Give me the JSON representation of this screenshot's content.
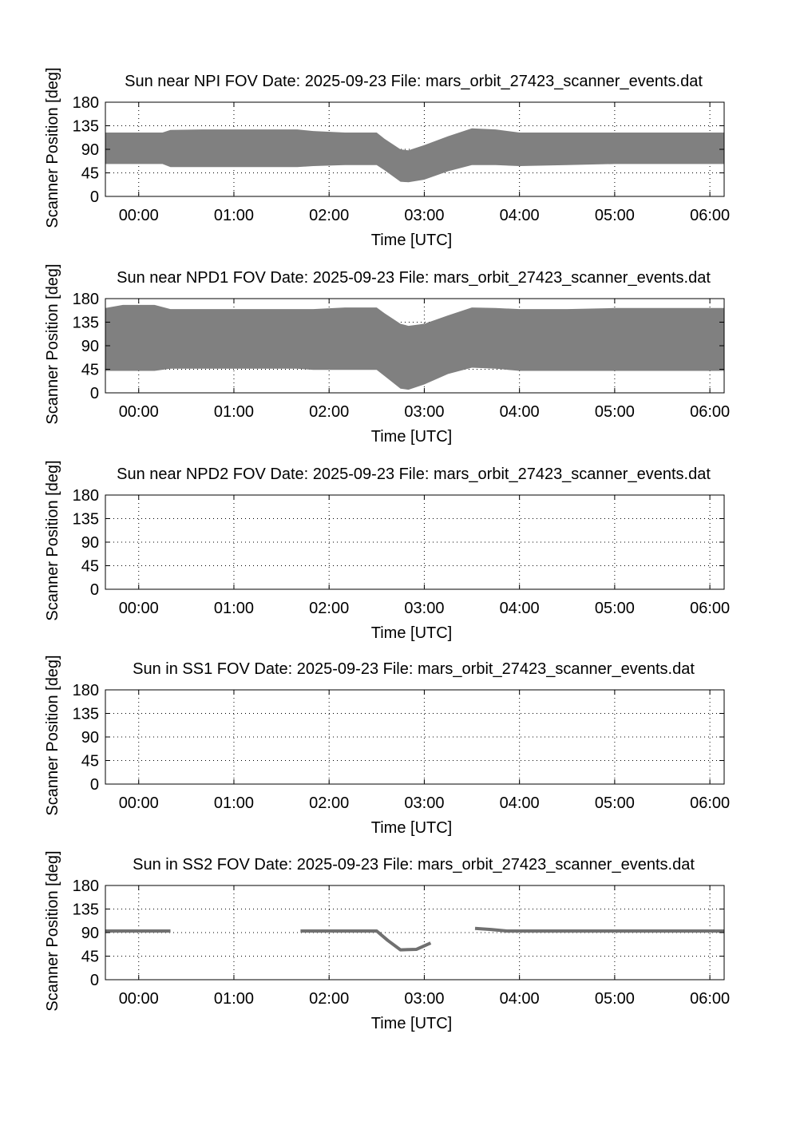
{
  "chart_data": [
    {
      "type": "area",
      "title": "Sun near NPI FOV   Date: 2025-09-23   File: mars_orbit_27423_scanner_events.dat",
      "xlabel": "Time [UTC]",
      "ylabel": "Scanner Position [deg]",
      "xlim": [
        "-00:21",
        "06:09"
      ],
      "ylim": [
        0,
        180
      ],
      "yticks": [
        0,
        45,
        90,
        135,
        180
      ],
      "xticks": [
        "00:00",
        "01:00",
        "02:00",
        "03:00",
        "04:00",
        "05:00",
        "06:00"
      ],
      "grid": true,
      "fill_color": "#808080",
      "series": [
        {
          "x": [
            "-00:21",
            "00:15",
            "00:20",
            "00:40",
            "01:40",
            "01:50",
            "02:10",
            "02:30",
            "02:35",
            "02:45",
            "02:50",
            "03:00",
            "03:15",
            "03:30",
            "03:45",
            "04:00",
            "04:30",
            "05:00",
            "06:09"
          ],
          "upper": [
            122,
            122,
            127,
            128,
            128,
            125,
            122,
            122,
            110,
            90,
            88,
            98,
            115,
            130,
            128,
            122,
            122,
            122,
            122
          ],
          "lower": [
            62,
            62,
            56,
            56,
            56,
            58,
            60,
            60,
            50,
            28,
            27,
            32,
            48,
            60,
            60,
            58,
            60,
            62,
            62
          ]
        }
      ]
    },
    {
      "type": "area",
      "title": "Sun near NPD1 FOV   Date: 2025-09-23   File: mars_orbit_27423_scanner_events.dat",
      "xlabel": "Time [UTC]",
      "ylabel": "Scanner Position [deg]",
      "xlim": [
        "-00:21",
        "06:09"
      ],
      "ylim": [
        0,
        180
      ],
      "yticks": [
        0,
        45,
        90,
        135,
        180
      ],
      "xticks": [
        "00:00",
        "01:00",
        "02:00",
        "03:00",
        "04:00",
        "05:00",
        "06:00"
      ],
      "grid": true,
      "fill_color": "#808080",
      "series": [
        {
          "x": [
            "-00:21",
            "-00:10",
            "00:10",
            "00:20",
            "01:40",
            "01:50",
            "02:10",
            "02:30",
            "02:35",
            "02:45",
            "02:50",
            "03:00",
            "03:15",
            "03:30",
            "03:45",
            "04:00",
            "04:30",
            "05:00",
            "06:09"
          ],
          "upper": [
            162,
            168,
            168,
            160,
            160,
            160,
            163,
            163,
            152,
            132,
            128,
            132,
            148,
            163,
            162,
            160,
            160,
            162,
            162
          ],
          "lower": [
            42,
            42,
            42,
            46,
            46,
            44,
            44,
            44,
            32,
            8,
            6,
            16,
            36,
            48,
            46,
            42,
            42,
            42,
            42
          ]
        }
      ]
    },
    {
      "type": "area",
      "title": "Sun near NPD2 FOV   Date: 2025-09-23   File: mars_orbit_27423_scanner_events.dat",
      "xlabel": "Time [UTC]",
      "ylabel": "Scanner Position [deg]",
      "xlim": [
        "-00:21",
        "06:09"
      ],
      "ylim": [
        0,
        180
      ],
      "yticks": [
        0,
        45,
        90,
        135,
        180
      ],
      "xticks": [
        "00:00",
        "01:00",
        "02:00",
        "03:00",
        "04:00",
        "05:00",
        "06:00"
      ],
      "grid": true,
      "series": []
    },
    {
      "type": "area",
      "title": "Sun in SS1 FOV   Date: 2025-09-23   File: mars_orbit_27423_scanner_events.dat",
      "xlabel": "Time [UTC]",
      "ylabel": "Scanner Position [deg]",
      "xlim": [
        "-00:21",
        "06:09"
      ],
      "ylim": [
        0,
        180
      ],
      "yticks": [
        0,
        45,
        90,
        135,
        180
      ],
      "xticks": [
        "00:00",
        "01:00",
        "02:00",
        "03:00",
        "04:00",
        "05:00",
        "06:00"
      ],
      "grid": true,
      "series": []
    },
    {
      "type": "line",
      "title": "Sun in SS2 FOV   Date: 2025-09-23   File: mars_orbit_27423_scanner_events.dat",
      "xlabel": "Time [UTC]",
      "ylabel": "Scanner Position [deg]",
      "xlim": [
        "-00:21",
        "06:09"
      ],
      "ylim": [
        0,
        180
      ],
      "yticks": [
        0,
        45,
        90,
        135,
        180
      ],
      "xticks": [
        "00:00",
        "01:00",
        "02:00",
        "03:00",
        "04:00",
        "05:00",
        "06:00"
      ],
      "grid": true,
      "line_color": "#707070",
      "series": [
        {
          "x": [
            "-00:21",
            "00:20"
          ],
          "y": [
            93,
            93
          ]
        },
        {
          "x": [
            "01:42",
            "02:30",
            "02:37",
            "02:45",
            "02:55",
            "03:04"
          ],
          "y": [
            93,
            93,
            75,
            57,
            58,
            70
          ]
        },
        {
          "x": [
            "03:32",
            "03:42",
            "03:52",
            "04:10",
            "06:09"
          ],
          "y": [
            98,
            96,
            93,
            93,
            93
          ]
        }
      ]
    }
  ]
}
